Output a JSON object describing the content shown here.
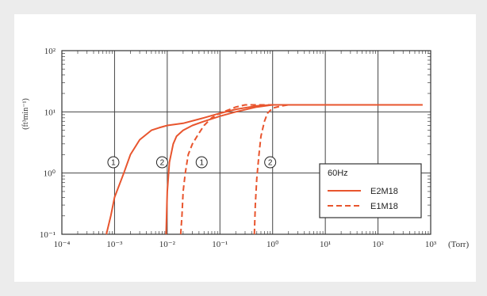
{
  "chart_data": {
    "type": "line",
    "title": "",
    "xlabel": "",
    "x_unit": "(Torr)",
    "ylabel": "(ft³min⁻¹)",
    "x_scale": "log",
    "y_scale": "log",
    "xlim": [
      0.0001,
      1000
    ],
    "ylim": [
      0.1,
      100
    ],
    "x_tick_labels": [
      "10⁻⁴",
      "10⁻³",
      "10⁻²",
      "10⁻¹",
      "10⁰",
      "10¹",
      "10²",
      "10³"
    ],
    "y_tick_labels": [
      "10⁻¹",
      "10⁰",
      "10¹",
      "10²"
    ],
    "grid": true,
    "legend": {
      "title": "60Hz",
      "position": "right"
    },
    "series": [
      {
        "name": "E2M18",
        "style": "solid",
        "color": "#e8552e",
        "curve_label": "1",
        "x": [
          0.0007,
          0.00085,
          0.001,
          0.0015,
          0.002,
          0.003,
          0.005,
          0.007,
          0.01,
          0.02,
          0.05,
          0.1,
          0.2,
          0.5,
          1,
          10,
          100,
          700
        ],
        "y": [
          0.1,
          0.2,
          0.4,
          1.0,
          2.0,
          3.5,
          5.0,
          5.5,
          6.0,
          6.5,
          8.0,
          9.5,
          11.0,
          12.5,
          13.0,
          13.0,
          13.0,
          13.0
        ]
      },
      {
        "name": "E2M18",
        "style": "solid",
        "color": "#e8552e",
        "curve_label": "2",
        "x": [
          0.0095,
          0.01,
          0.011,
          0.013,
          0.015,
          0.02,
          0.03,
          0.05,
          0.1,
          0.2,
          0.5,
          1,
          10,
          100,
          700
        ],
        "y": [
          0.1,
          0.5,
          1.5,
          3.0,
          4.0,
          5.0,
          6.0,
          7.0,
          8.5,
          10.0,
          12.0,
          13.0,
          13.0,
          13.0,
          13.0
        ]
      },
      {
        "name": "E1M18",
        "style": "dashed",
        "color": "#e8552e",
        "curve_label": "1",
        "x": [
          0.018,
          0.019,
          0.02,
          0.022,
          0.025,
          0.03,
          0.04,
          0.05,
          0.07,
          0.1,
          0.2,
          0.3,
          0.5,
          1,
          10,
          100,
          700
        ],
        "y": [
          0.1,
          0.2,
          0.5,
          1.0,
          2.0,
          3.0,
          4.5,
          6.0,
          8.0,
          9.5,
          12.0,
          13.0,
          13.0,
          13.0,
          13.0,
          13.0,
          13.0
        ]
      },
      {
        "name": "E1M18",
        "style": "dashed",
        "color": "#e8552e",
        "curve_label": "2",
        "x": [
          0.45,
          0.47,
          0.5,
          0.55,
          0.6,
          0.7,
          0.8,
          1.0,
          1.5,
          2,
          10,
          100,
          700
        ],
        "y": [
          0.1,
          0.3,
          0.8,
          2.0,
          4.0,
          7.0,
          9.5,
          11.5,
          12.5,
          13.0,
          13.0,
          13.0,
          13.0
        ]
      }
    ],
    "annotations": [
      {
        "text": "1",
        "x": 0.00095,
        "y": 1.5
      },
      {
        "text": "2",
        "x": 0.008,
        "y": 1.5
      },
      {
        "text": "1",
        "x": 0.045,
        "y": 1.5
      },
      {
        "text": "2",
        "x": 0.9,
        "y": 1.5
      }
    ]
  }
}
